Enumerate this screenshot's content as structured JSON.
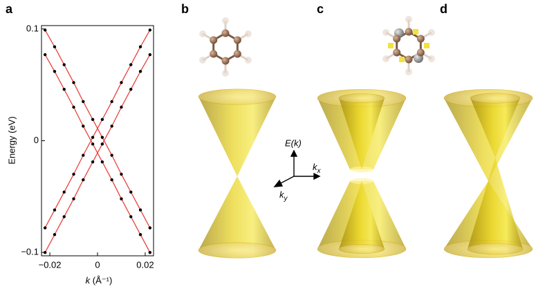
{
  "chart_data": {
    "type": "line",
    "panel_label": "a",
    "ylabel": "Energy (eV)",
    "xlabel": {
      "symbol": "k",
      "unit": "(Å⁻¹)"
    },
    "x": [
      -0.022,
      -0.018,
      -0.014,
      -0.01,
      -0.006,
      -0.002,
      0.002,
      0.006,
      0.01,
      0.014,
      0.018,
      0.022
    ],
    "series": [
      {
        "color": "#e8413c",
        "marker_color": "#000000",
        "values": [
          0.099,
          0.084,
          0.068,
          0.052,
          0.035,
          0.019,
          0.003,
          -0.013,
          -0.03,
          -0.046,
          -0.062,
          -0.078
        ]
      },
      {
        "color": "#e8413c",
        "marker_color": "#000000",
        "values": [
          0.077,
          0.062,
          0.046,
          0.03,
          0.013,
          -0.003,
          -0.019,
          -0.035,
          -0.052,
          -0.068,
          -0.084,
          -0.1
        ]
      },
      {
        "color": "#e8413c",
        "marker_color": "#000000",
        "values": [
          -0.078,
          -0.062,
          -0.046,
          -0.03,
          -0.013,
          0.003,
          0.019,
          0.035,
          0.052,
          0.068,
          0.084,
          0.099
        ]
      },
      {
        "color": "#e8413c",
        "marker_color": "#000000",
        "values": [
          -0.1,
          -0.084,
          -0.068,
          -0.052,
          -0.035,
          -0.019,
          -0.003,
          0.013,
          0.03,
          0.046,
          0.062,
          0.077
        ]
      }
    ],
    "xlim": [
      -0.0235,
      0.0235
    ],
    "xticks": [
      {
        "value": -0.02,
        "label": "−0.02"
      },
      0,
      0.02
    ],
    "ylim": [
      -0.103,
      0.103
    ],
    "yticks": [
      {
        "value": -0.1,
        "label": "−0.1"
      },
      0,
      0.1
    ]
  },
  "panels": {
    "b": "b",
    "c": "c",
    "d": "d"
  },
  "axes_glyph": {
    "energy": "E(k)",
    "kx": {
      "symbol": "k",
      "sub": "x"
    },
    "ky": {
      "symbol": "k",
      "sub": "y"
    }
  }
}
